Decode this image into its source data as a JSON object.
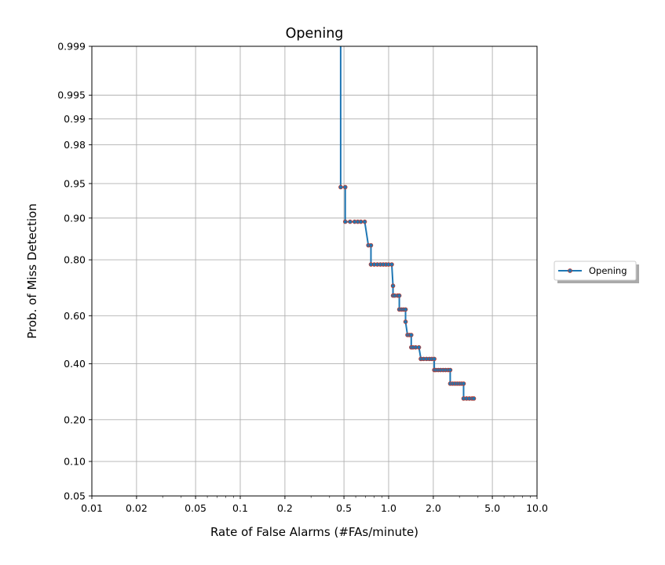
{
  "chart_data": {
    "type": "line",
    "title": "Opening",
    "xlabel": "Rate of False Alarms (#FAs/minute)",
    "ylabel": "Prob. of Miss Detection",
    "x_scale": "log",
    "y_scale": "normal-probability",
    "xlim": [
      0.01,
      10.0
    ],
    "ylim": [
      0.05,
      0.999
    ],
    "x_ticks": [
      0.01,
      0.02,
      0.05,
      0.1,
      0.2,
      0.5,
      1.0,
      2.0,
      5.0,
      10.0
    ],
    "x_tick_labels": [
      "0.01",
      "0.02",
      "0.05",
      "0.1",
      "0.2",
      "0.5",
      "1.0",
      "2.0",
      "5.0",
      "10.0"
    ],
    "y_ticks": [
      0.05,
      0.1,
      0.2,
      0.4,
      0.6,
      0.8,
      0.9,
      0.95,
      0.98,
      0.99,
      0.995,
      0.999
    ],
    "y_tick_labels": [
      "0.05",
      "0.10",
      "0.20",
      "0.40",
      "0.60",
      "0.80",
      "0.90",
      "0.95",
      "0.98",
      "0.99",
      "0.995",
      "0.999"
    ],
    "grid": true,
    "legend_position": "right",
    "line_color": "#1f77b4",
    "marker_edge_color": "#c0392b",
    "series": [
      {
        "name": "Opening",
        "x": [
          0.475,
          0.475,
          0.51,
          0.51,
          0.55,
          0.59,
          0.62,
          0.65,
          0.69,
          0.73,
          0.76,
          0.76,
          0.8,
          0.84,
          0.88,
          0.92,
          0.96,
          1.0,
          1.05,
          1.07,
          1.07,
          1.1,
          1.15,
          1.18,
          1.18,
          1.22,
          1.26,
          1.3,
          1.3,
          1.34,
          1.38,
          1.42,
          1.42,
          1.46,
          1.52,
          1.6,
          1.65,
          1.65,
          1.72,
          1.8,
          1.88,
          1.95,
          2.03,
          2.03,
          2.08,
          2.16,
          2.24,
          2.33,
          2.42,
          2.52,
          2.6,
          2.6,
          2.7,
          2.8,
          2.9,
          3.0,
          3.1,
          3.2,
          3.2,
          3.35,
          3.5,
          3.65,
          3.75
        ],
        "y": [
          0.999,
          0.946,
          0.946,
          0.893,
          0.893,
          0.893,
          0.893,
          0.893,
          0.893,
          0.84,
          0.84,
          0.786,
          0.786,
          0.786,
          0.786,
          0.786,
          0.786,
          0.786,
          0.786,
          0.715,
          0.679,
          0.679,
          0.679,
          0.679,
          0.625,
          0.625,
          0.625,
          0.625,
          0.575,
          0.52,
          0.52,
          0.52,
          0.468,
          0.468,
          0.468,
          0.468,
          0.42,
          0.42,
          0.42,
          0.42,
          0.42,
          0.42,
          0.42,
          0.375,
          0.375,
          0.375,
          0.375,
          0.375,
          0.375,
          0.375,
          0.375,
          0.322,
          0.322,
          0.322,
          0.322,
          0.322,
          0.322,
          0.322,
          0.268,
          0.268,
          0.268,
          0.268,
          0.268
        ]
      }
    ]
  }
}
